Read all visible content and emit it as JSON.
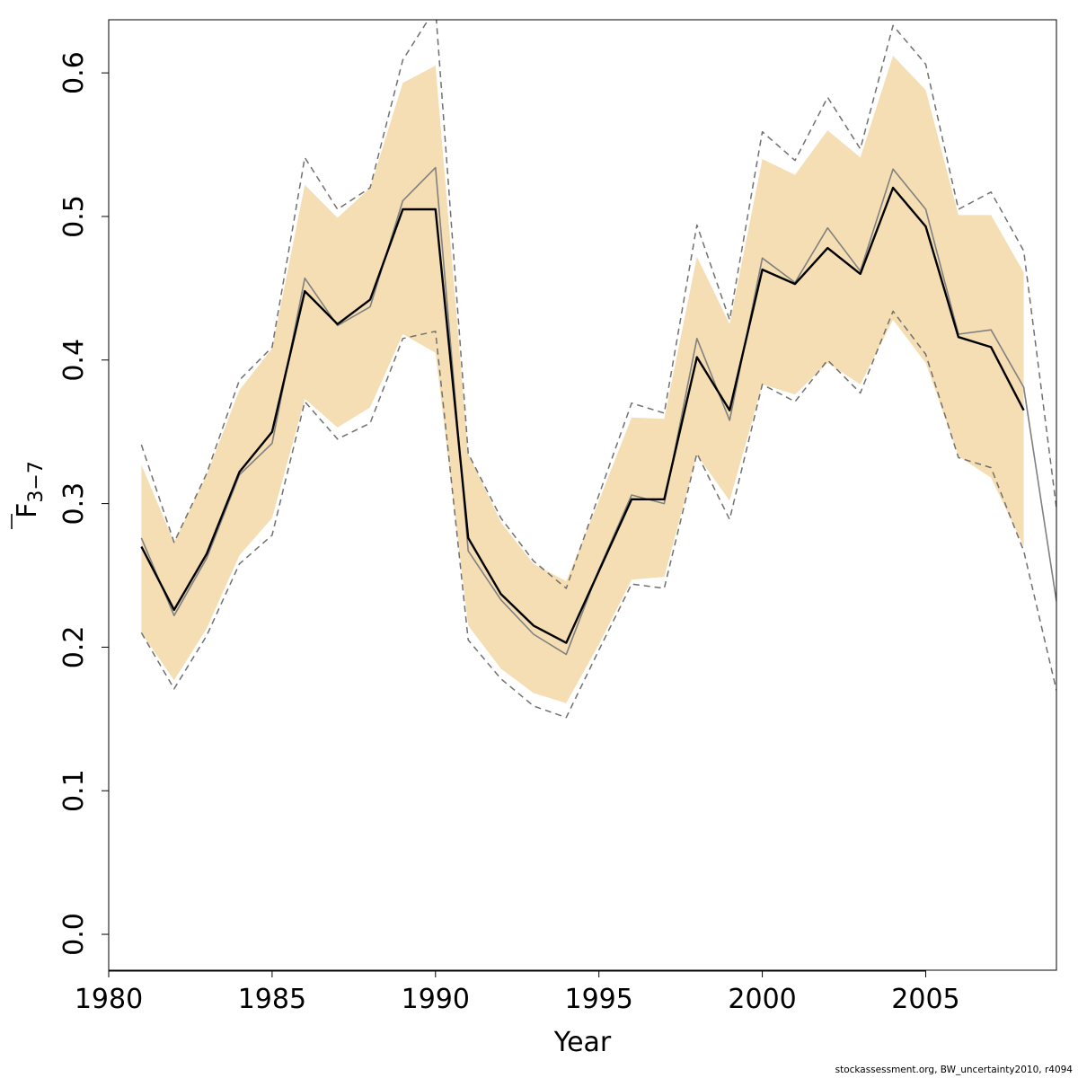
{
  "chart_data": {
    "type": "line",
    "title": "",
    "xlabel": "Year",
    "ylabel_main": "F",
    "ylabel_sub": "3−7",
    "xlim": [
      1980,
      2009
    ],
    "ylim": [
      -0.025,
      0.637
    ],
    "xticks": [
      1980,
      1985,
      1990,
      1995,
      2000,
      2005
    ],
    "yticks": [
      0.0,
      0.1,
      0.2,
      0.3,
      0.4,
      0.5,
      0.6
    ],
    "ytick_labels": [
      "0.0",
      "0.1",
      "0.2",
      "0.3",
      "0.4",
      "0.5",
      "0.6"
    ],
    "colors": {
      "band": "#f5deb3",
      "estimate": "#000000",
      "alt_line": "#808080",
      "dashed": "#707070"
    },
    "band": {
      "x": [
        1981,
        1982,
        1983,
        1984,
        1985,
        1986,
        1987,
        1988,
        1989,
        1990,
        1991,
        1992,
        1993,
        1994,
        1995,
        1996,
        1997,
        1998,
        1999,
        2000,
        2001,
        2002,
        2003,
        2004,
        2005,
        2006,
        2007,
        2008
      ],
      "lower": [
        0.21,
        0.177,
        0.213,
        0.264,
        0.29,
        0.373,
        0.353,
        0.367,
        0.418,
        0.405,
        0.215,
        0.185,
        0.168,
        0.161,
        0.202,
        0.247,
        0.249,
        0.334,
        0.302,
        0.383,
        0.376,
        0.398,
        0.383,
        0.428,
        0.398,
        0.333,
        0.318,
        0.27
      ],
      "upper": [
        0.327,
        0.273,
        0.32,
        0.379,
        0.408,
        0.522,
        0.499,
        0.52,
        0.593,
        0.605,
        0.335,
        0.287,
        0.258,
        0.246,
        0.302,
        0.36,
        0.359,
        0.472,
        0.425,
        0.54,
        0.529,
        0.56,
        0.541,
        0.612,
        0.588,
        0.501,
        0.501,
        0.461
      ]
    },
    "series": [
      {
        "x": [
          1981,
          1982,
          1983,
          1984,
          1985,
          1986,
          1987,
          1988,
          1989,
          1990,
          1991,
          1992,
          1993,
          1994,
          1995,
          1996,
          1997,
          1998,
          1999,
          2000,
          2001,
          2002,
          2003,
          2004,
          2005,
          2006,
          2007,
          2008
        ],
        "values": [
          0.27,
          0.226,
          0.265,
          0.322,
          0.35,
          0.448,
          0.425,
          0.442,
          0.505,
          0.505,
          0.276,
          0.237,
          0.215,
          0.203,
          0.253,
          0.303,
          0.303,
          0.402,
          0.365,
          0.463,
          0.453,
          0.478,
          0.46,
          0.52,
          0.493,
          0.416,
          0.409,
          0.365
        ]
      },
      {
        "x": [
          1981,
          1982,
          1983,
          1984,
          1985,
          1986,
          1987,
          1988,
          1989,
          1990,
          1991,
          1992,
          1993,
          1994,
          1995,
          1996,
          1997,
          1998,
          1999,
          2000,
          2001,
          2002,
          2003,
          2004,
          2005,
          2006,
          2007,
          2008,
          2009
        ],
        "values": [
          0.276,
          0.222,
          0.262,
          0.32,
          0.342,
          0.457,
          0.424,
          0.437,
          0.511,
          0.534,
          0.267,
          0.233,
          0.209,
          0.195,
          0.254,
          0.306,
          0.3,
          0.415,
          0.358,
          0.471,
          0.454,
          0.492,
          0.462,
          0.533,
          0.505,
          0.418,
          0.421,
          0.381,
          0.232
        ]
      },
      {
        "x": [
          1981,
          1982,
          1983,
          1984,
          1985,
          1986,
          1987,
          1988,
          1989,
          1990,
          1991,
          1992,
          1993,
          1994,
          1995,
          1996,
          1997,
          1998,
          1999,
          2000,
          2001,
          2002,
          2003,
          2004,
          2005,
          2006,
          2007,
          2008,
          2009
        ],
        "values": [
          0.341,
          0.273,
          0.321,
          0.386,
          0.409,
          0.541,
          0.505,
          0.52,
          0.609,
          0.645,
          0.335,
          0.29,
          0.26,
          0.241,
          0.306,
          0.37,
          0.363,
          0.494,
          0.428,
          0.559,
          0.539,
          0.583,
          0.547,
          0.633,
          0.606,
          0.505,
          0.517,
          0.476,
          0.297
        ],
        "dashed": true
      },
      {
        "x": [
          1981,
          1982,
          1983,
          1984,
          1985,
          1986,
          1987,
          1988,
          1989,
          1990,
          1991,
          1992,
          1993,
          1994,
          1995,
          1996,
          1997,
          1998,
          1999,
          2000,
          2001,
          2002,
          2003,
          2004,
          2005,
          2006,
          2007,
          2008,
          2009
        ],
        "values": [
          0.21,
          0.171,
          0.208,
          0.258,
          0.278,
          0.371,
          0.345,
          0.356,
          0.415,
          0.42,
          0.205,
          0.178,
          0.159,
          0.151,
          0.198,
          0.244,
          0.241,
          0.335,
          0.289,
          0.383,
          0.371,
          0.4,
          0.377,
          0.434,
          0.404,
          0.332,
          0.325,
          0.267,
          0.17
        ],
        "dashed": true
      }
    ]
  },
  "footer_text": "stockassessment.org, BW_uncertainty2010, r4094"
}
